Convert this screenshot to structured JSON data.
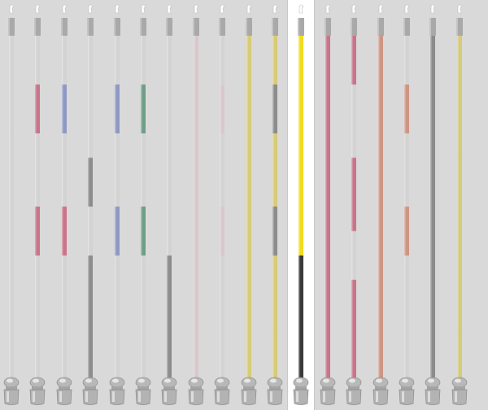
{
  "selected_index": 11,
  "palette": {
    "clear": "#d3d3d3",
    "pink": "#c9748a",
    "blue": "#8e98c4",
    "gray": "#8c8c8c",
    "green": "#6f9e87",
    "rose": "#d8c8cb",
    "yellow": "#d6cb78",
    "bright_yellow": "#f2dc1e",
    "black": "#3a3a3a",
    "salmon": "#cc9585"
  },
  "poles": [
    {
      "name": "plain-pole",
      "segments": [
        "clear",
        "clear",
        "clear",
        "clear",
        "clear",
        "clear",
        "clear",
        "clear",
        "clear",
        "clear",
        "clear",
        "clear",
        "clear",
        "clear"
      ]
    },
    {
      "name": "pink-band-pole",
      "segments": [
        "clear",
        "clear",
        "pink",
        "pink",
        "clear",
        "clear",
        "clear",
        "pink",
        "pink",
        "clear",
        "clear",
        "clear",
        "clear",
        "clear"
      ]
    },
    {
      "name": "pink-blue-band-pole",
      "segments": [
        "clear",
        "clear",
        "blue",
        "blue",
        "clear",
        "clear",
        "clear",
        "pink",
        "pink",
        "clear",
        "clear",
        "clear",
        "clear",
        "clear"
      ]
    },
    {
      "name": "gray-band-pole",
      "segments": [
        "clear",
        "clear",
        "clear",
        "clear",
        "clear",
        "gray",
        "gray",
        "clear",
        "clear",
        "gray",
        "gray",
        "gray",
        "gray",
        "gray"
      ]
    },
    {
      "name": "blue-band-pole",
      "segments": [
        "clear",
        "clear",
        "blue",
        "blue",
        "clear",
        "clear",
        "clear",
        "blue",
        "blue",
        "clear",
        "clear",
        "clear",
        "clear",
        "clear"
      ]
    },
    {
      "name": "green-band-pole",
      "segments": [
        "clear",
        "clear",
        "green",
        "green",
        "clear",
        "clear",
        "clear",
        "green",
        "green",
        "clear",
        "clear",
        "clear",
        "clear",
        "clear"
      ]
    },
    {
      "name": "gray-bottom-pole",
      "segments": [
        "clear",
        "clear",
        "clear",
        "clear",
        "clear",
        "clear",
        "clear",
        "clear",
        "clear",
        "gray",
        "gray",
        "gray",
        "gray",
        "gray"
      ]
    },
    {
      "name": "rose-pole",
      "segments": [
        "rose",
        "rose",
        "rose",
        "rose",
        "rose",
        "rose",
        "rose",
        "rose",
        "rose",
        "rose",
        "rose",
        "rose",
        "rose",
        "rose"
      ]
    },
    {
      "name": "rose-band-pole",
      "segments": [
        "clear",
        "clear",
        "rose",
        "rose",
        "clear",
        "clear",
        "clear",
        "rose",
        "rose",
        "clear",
        "clear",
        "clear",
        "clear",
        "clear"
      ]
    },
    {
      "name": "yellow-pole",
      "segments": [
        "yellow",
        "yellow",
        "yellow",
        "yellow",
        "yellow",
        "yellow",
        "yellow",
        "yellow",
        "yellow",
        "yellow",
        "yellow",
        "yellow",
        "yellow",
        "yellow"
      ]
    },
    {
      "name": "yellow-gray-band-pole",
      "segments": [
        "yellow",
        "yellow",
        "gray",
        "gray",
        "yellow",
        "yellow",
        "yellow",
        "gray",
        "gray",
        "yellow",
        "yellow",
        "yellow",
        "yellow",
        "yellow"
      ]
    },
    {
      "name": "yellow-black-pole",
      "segments": [
        "bright_yellow",
        "bright_yellow",
        "bright_yellow",
        "bright_yellow",
        "bright_yellow",
        "bright_yellow",
        "bright_yellow",
        "bright_yellow",
        "bright_yellow",
        "black",
        "black",
        "black",
        "black",
        "black"
      ]
    },
    {
      "name": "pink-pole",
      "segments": [
        "pink",
        "pink",
        "pink",
        "pink",
        "pink",
        "pink",
        "pink",
        "pink",
        "pink",
        "pink",
        "pink",
        "pink",
        "pink",
        "pink"
      ]
    },
    {
      "name": "pink-stripe-pole",
      "segments": [
        "pink",
        "pink",
        "clear",
        "clear",
        "clear",
        "pink",
        "pink",
        "pink",
        "clear",
        "clear",
        "pink",
        "pink",
        "pink",
        "pink"
      ]
    },
    {
      "name": "salmon-pole",
      "segments": [
        "salmon",
        "salmon",
        "salmon",
        "salmon",
        "salmon",
        "salmon",
        "salmon",
        "salmon",
        "salmon",
        "salmon",
        "salmon",
        "salmon",
        "salmon",
        "salmon"
      ]
    },
    {
      "name": "salmon-band-pole",
      "segments": [
        "clear",
        "clear",
        "salmon",
        "salmon",
        "clear",
        "clear",
        "clear",
        "salmon",
        "salmon",
        "clear",
        "clear",
        "clear",
        "clear",
        "clear"
      ]
    },
    {
      "name": "gray-pole",
      "segments": [
        "gray",
        "gray",
        "gray",
        "gray",
        "gray",
        "gray",
        "gray",
        "gray",
        "gray",
        "gray",
        "gray",
        "gray",
        "gray",
        "gray"
      ]
    },
    {
      "name": "pale-yellow-pole",
      "segments": [
        "yellow",
        "yellow",
        "yellow",
        "yellow",
        "yellow",
        "yellow",
        "yellow",
        "yellow",
        "yellow",
        "yellow",
        "yellow",
        "yellow",
        "yellow",
        "yellow"
      ]
    }
  ]
}
